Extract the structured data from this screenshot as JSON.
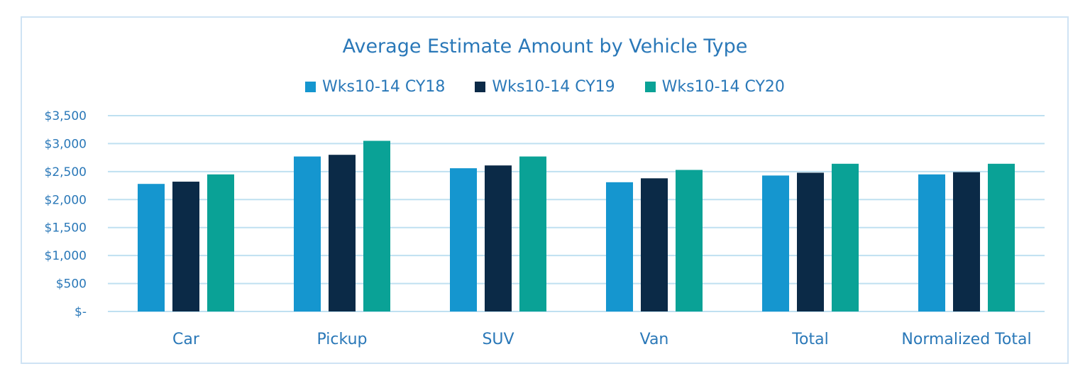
{
  "chart_data": {
    "type": "bar",
    "title": "Average Estimate Amount by Vehicle Type",
    "categories": [
      "Car",
      "Pickup",
      "SUV",
      "Van",
      "Total",
      "Normalized Total"
    ],
    "series": [
      {
        "name": "Wks10-14 CY18",
        "color": "#1596cf",
        "values": [
          2280,
          2770,
          2560,
          2310,
          2430,
          2450
        ]
      },
      {
        "name": "Wks10-14 CY19",
        "color": "#0b2a47",
        "values": [
          2320,
          2800,
          2610,
          2380,
          2480,
          2490
        ]
      },
      {
        "name": "Wks10-14 CY20",
        "color": "#0aa296",
        "values": [
          2450,
          3050,
          2770,
          2530,
          2640,
          2640
        ]
      }
    ],
    "ylim": [
      0,
      3500
    ],
    "yticks": [
      0,
      500,
      1000,
      1500,
      2000,
      2500,
      3000,
      3500
    ],
    "ytick_labels": [
      "$-",
      "$500",
      "$1,000",
      "$1,500",
      "$2,000",
      "$2,500",
      "$3,000",
      "$3,500"
    ],
    "grid": true,
    "legend_position": "top"
  }
}
